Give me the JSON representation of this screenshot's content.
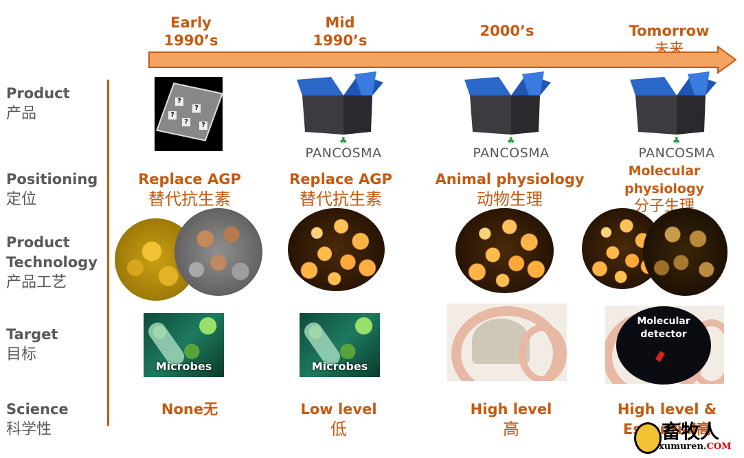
{
  "timeline": {
    "eras": [
      {
        "label": "Early",
        "sub": "1990’s"
      },
      {
        "label": "Mid",
        "sub": "1990’s"
      },
      {
        "label": "2000’s",
        "sub": ""
      },
      {
        "label": "Tomorrow",
        "sub": "未来"
      }
    ],
    "colors": {
      "accent": "#c55a11",
      "arrow_fill": "#f4a460"
    }
  },
  "rows": {
    "product": {
      "en": "Product",
      "zh": "产品"
    },
    "positioning": {
      "en": "Positioning",
      "zh": "定位"
    },
    "technology": {
      "en1": "Product",
      "en2": "Technology",
      "zh": "产品工艺"
    },
    "target": {
      "en": "Target",
      "zh": "目标"
    },
    "science": {
      "en": "Science",
      "zh": "科学性"
    }
  },
  "product": {
    "brand": "PANCOSMA",
    "icons": [
      "mystery-cube-icon",
      "open-box-icon",
      "open-box-icon",
      "open-box-icon"
    ]
  },
  "positioning": [
    {
      "en": "Replace AGP",
      "zh": "替代抗生素"
    },
    {
      "en": "Replace AGP",
      "zh": "替代抗生素"
    },
    {
      "en": "Animal physiology",
      "zh": "动物生理"
    },
    {
      "en": "Molecular physiology",
      "zh": "分子生理"
    }
  ],
  "target": [
    {
      "label": "Microbes"
    },
    {
      "label": "Microbes"
    },
    {
      "label": ""
    },
    {
      "label": "Molecular detector"
    }
  ],
  "science": [
    {
      "en": "None无",
      "zh": ""
    },
    {
      "en": "Low level",
      "zh": "低"
    },
    {
      "en": "High level",
      "zh": "高"
    },
    {
      "en": "High level &",
      "zh": "Essential高"
    }
  ],
  "watermark": {
    "zh": "畜牧人",
    "url": "xumuren.",
    "com": "COM"
  }
}
